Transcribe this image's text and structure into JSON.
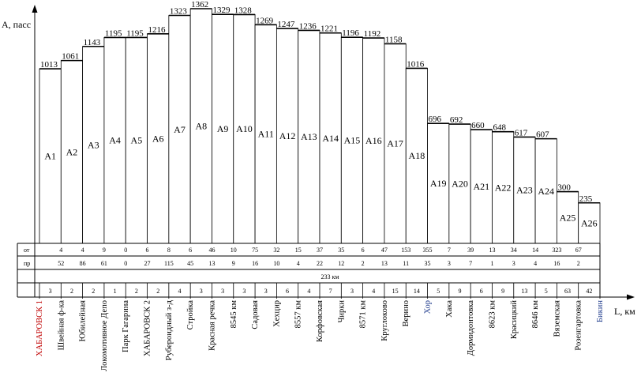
{
  "chart_data": {
    "type": "bar",
    "title": "",
    "ylabel": "A, пасс",
    "xlabel": "L, км",
    "ylim": [
      0,
      1380
    ],
    "grid": false,
    "total_label": "233 км",
    "row_labels": {
      "boarding": "от",
      "alighting": "пр"
    },
    "categories": [
      "A1",
      "A2",
      "A3",
      "A4",
      "A5",
      "A6",
      "A7",
      "A8",
      "A9",
      "A10",
      "A11",
      "A12",
      "A13",
      "A14",
      "A15",
      "A16",
      "A17",
      "A18",
      "A19",
      "A20",
      "A21",
      "A22",
      "A23",
      "A24",
      "A25",
      "A26"
    ],
    "values": [
      1013,
      1061,
      1143,
      1195,
      1195,
      1216,
      1323,
      1362,
      1329,
      1328,
      1269,
      1247,
      1236,
      1221,
      1196,
      1192,
      1158,
      1016,
      696,
      692,
      660,
      648,
      617,
      607,
      300,
      235
    ],
    "distances": [
      "3",
      "2",
      "2",
      "1",
      "2",
      "2",
      "4",
      "3",
      "3",
      "3",
      "3",
      "6",
      "4",
      "7",
      "3",
      "4",
      "15",
      "14",
      "5",
      "9",
      "6",
      "9",
      "13",
      "5",
      "63",
      "42"
    ],
    "boarding": [
      "4",
      "4",
      "9",
      "0",
      "6",
      "8",
      "6",
      "46",
      "10",
      "75",
      "32",
      "15",
      "37",
      "35",
      "6",
      "47",
      "153",
      "355",
      "7",
      "39",
      "13",
      "34",
      "14",
      "323",
      "67"
    ],
    "alighting": [
      "52",
      "86",
      "61",
      "0",
      "27",
      "115",
      "45",
      "13",
      "9",
      "16",
      "10",
      "4",
      "22",
      "12",
      "2",
      "13",
      "11",
      "35",
      "3",
      "7",
      "1",
      "3",
      "4",
      "16",
      "2"
    ],
    "stations": [
      {
        "name": "ХАБАРОВСК 1",
        "color": "#c00000"
      },
      {
        "name": "Швейная ф-ка",
        "color": "#000000"
      },
      {
        "name": "Юбилейная",
        "color": "#000000"
      },
      {
        "name": "Локомотивное Депо",
        "color": "#000000"
      },
      {
        "name": "Парк Гагарина",
        "color": "#000000"
      },
      {
        "name": "ХАБАРОВСК 2",
        "color": "#000000"
      },
      {
        "name": "Рубероидный з-д",
        "color": "#000000"
      },
      {
        "name": "Стройка",
        "color": "#000000"
      },
      {
        "name": "Красная речка",
        "color": "#000000"
      },
      {
        "name": "8545 км",
        "color": "#000000"
      },
      {
        "name": "Садовая",
        "color": "#000000"
      },
      {
        "name": "Хехцир",
        "color": "#000000"
      },
      {
        "name": "8557 км",
        "color": "#000000"
      },
      {
        "name": "Корфовская",
        "color": "#000000"
      },
      {
        "name": "Чирки",
        "color": "#000000"
      },
      {
        "name": "8571 км",
        "color": "#000000"
      },
      {
        "name": "Круглоково",
        "color": "#000000"
      },
      {
        "name": "Верино",
        "color": "#000000"
      },
      {
        "name": "Хор",
        "color": "#1f3b8c"
      },
      {
        "name": "Хака",
        "color": "#000000"
      },
      {
        "name": "Дормидонтовка",
        "color": "#000000"
      },
      {
        "name": "8623 км",
        "color": "#000000"
      },
      {
        "name": "Красицкий",
        "color": "#000000"
      },
      {
        "name": "8646 км",
        "color": "#000000"
      },
      {
        "name": "Вяземская",
        "color": "#000000"
      },
      {
        "name": "Розенгартовка",
        "color": "#000000"
      },
      {
        "name": "Бикин",
        "color": "#1f3b8c"
      }
    ]
  }
}
